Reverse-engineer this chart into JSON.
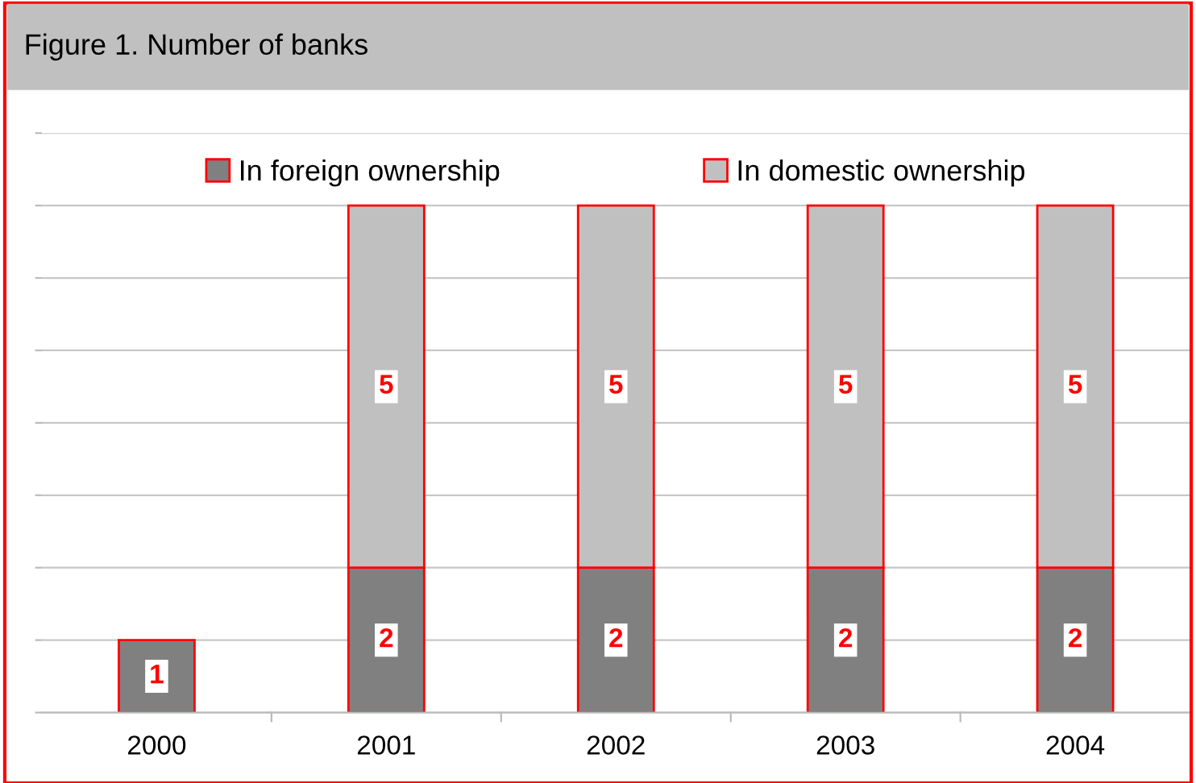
{
  "chart_data": {
    "type": "bar",
    "title": "Figure 1. Number of banks",
    "categories": [
      "2000",
      "2001",
      "2002",
      "2003",
      "2004"
    ],
    "stacked": true,
    "series": [
      {
        "name": "In foreign ownership",
        "color": "#808080",
        "values": [
          1,
          2,
          2,
          2,
          2
        ]
      },
      {
        "name": "In domestic ownership",
        "color": "#c0c0c0",
        "values": [
          null,
          5,
          5,
          5,
          5
        ]
      }
    ],
    "data_labels": true,
    "ylim": [
      0,
      8
    ],
    "yticks": [
      {
        "value": 0,
        "label": null
      },
      {
        "value": 1,
        "label": null
      },
      {
        "value": 2,
        "label": null
      },
      {
        "value": 3,
        "label": null
      },
      {
        "value": 4,
        "label": null
      },
      {
        "value": 5,
        "label": null
      },
      {
        "value": 6,
        "label": null
      },
      {
        "value": 7,
        "label": null
      },
      {
        "value": 8,
        "label": null
      }
    ],
    "tick_labels": "x",
    "grid": "y",
    "legend": "top"
  }
}
